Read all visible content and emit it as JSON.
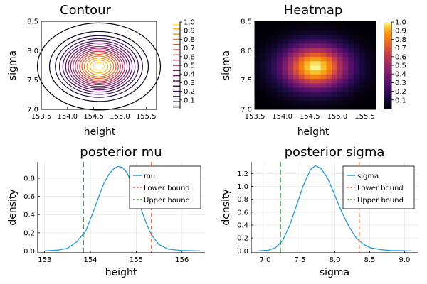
{
  "chart_data": [
    {
      "type": "contour",
      "title": "Contour",
      "xlabel": "height",
      "ylabel": "sigma",
      "xlim": [
        153.5,
        155.7
      ],
      "ylim": [
        7.0,
        8.5
      ],
      "xticks": [
        153.5,
        154.0,
        154.5,
        155.0,
        155.5
      ],
      "xticklabels": [
        "153.5",
        "154.0",
        "154.5",
        "155.0",
        "155.5"
      ],
      "yticks": [
        7.0,
        7.5,
        8.0,
        8.5
      ],
      "yticklabels": [
        "7.0",
        "7.5",
        "8.0",
        "8.5"
      ],
      "peak": {
        "x": 154.6,
        "y": 7.73
      },
      "spread": {
        "x": 0.42,
        "y": 0.265
      },
      "levels": [
        0.02,
        0.08,
        0.14,
        0.2,
        0.26,
        0.32,
        0.38,
        0.44,
        0.5,
        0.56,
        0.62,
        0.68,
        0.74,
        0.8,
        0.86,
        0.92,
        0.97
      ],
      "colorbar": {
        "ticks": [
          0.1,
          0.2,
          0.3,
          0.4,
          0.5,
          0.6,
          0.7,
          0.8,
          0.9,
          1.0
        ],
        "labels": [
          "0.1",
          "0.2",
          "0.3",
          "0.4",
          "0.5",
          "0.6",
          "0.7",
          "0.8",
          "0.9",
          "1.0"
        ]
      },
      "colormap": "inferno"
    },
    {
      "type": "heatmap",
      "title": "Heatmap",
      "xlabel": "height",
      "ylabel": "sigma",
      "xlim": [
        153.5,
        155.7
      ],
      "ylim": [
        7.0,
        8.5
      ],
      "xticks": [
        153.5,
        154.0,
        154.5,
        155.0,
        155.5
      ],
      "xticklabels": [
        "153.5",
        "154.0",
        "154.5",
        "155.0",
        "155.5"
      ],
      "yticks": [
        7.0,
        7.5,
        8.0,
        8.5
      ],
      "yticklabels": [
        "7.0",
        "7.5",
        "8.0",
        "8.5"
      ],
      "grid_cells": {
        "nx": 22,
        "ny": 20
      },
      "peak": {
        "x": 154.6,
        "y": 7.73
      },
      "spread": {
        "x": 0.42,
        "y": 0.265
      },
      "colorbar": {
        "ticks": [
          0.1,
          0.2,
          0.3,
          0.4,
          0.5,
          0.6,
          0.7,
          0.8,
          0.9,
          1.0
        ],
        "labels": [
          "0.1",
          "0.2",
          "0.3",
          "0.4",
          "0.5",
          "0.6",
          "0.7",
          "0.8",
          "0.9",
          "1.0"
        ]
      },
      "colormap": "inferno"
    },
    {
      "type": "line",
      "title": "posterior mu",
      "xlabel": "height",
      "ylabel": "density",
      "xlim": [
        152.85,
        156.5
      ],
      "ylim": [
        -0.02,
        0.98
      ],
      "xticks": [
        153,
        154,
        155,
        156
      ],
      "xticklabels": [
        "153",
        "154",
        "155",
        "156"
      ],
      "yticks": [
        0.0,
        0.2,
        0.4,
        0.6,
        0.8
      ],
      "yticklabels": [
        "0.0",
        "0.2",
        "0.4",
        "0.6",
        "0.8"
      ],
      "grid": true,
      "legend_position": "top-right",
      "series": [
        {
          "name": "mu",
          "color": "#1f9bde",
          "x": [
            153.0,
            153.3,
            153.5,
            153.7,
            153.9,
            154.0,
            154.1,
            154.2,
            154.3,
            154.4,
            154.5,
            154.6,
            154.7,
            154.8,
            154.9,
            155.0,
            155.1,
            155.2,
            155.3,
            155.4,
            155.5,
            155.7,
            156.0,
            156.4
          ],
          "y": [
            0.0,
            0.01,
            0.03,
            0.1,
            0.22,
            0.35,
            0.48,
            0.62,
            0.75,
            0.84,
            0.9,
            0.93,
            0.92,
            0.86,
            0.75,
            0.62,
            0.47,
            0.33,
            0.21,
            0.13,
            0.07,
            0.02,
            0.005,
            0.0
          ]
        }
      ],
      "vlines": [
        {
          "name": "Lower bound",
          "x": 155.33,
          "color": "#e26f46",
          "dash": "5,4"
        },
        {
          "name": "Upper bound",
          "x": 153.85,
          "color": "#3da44d",
          "dash": "7,4"
        }
      ]
    },
    {
      "type": "line",
      "title": "posterior sigma",
      "xlabel": "sigma",
      "ylabel": "density",
      "xlim": [
        6.8,
        9.2
      ],
      "ylim": [
        -0.03,
        1.38
      ],
      "xticks": [
        7.0,
        7.5,
        8.0,
        8.5,
        9.0
      ],
      "xticklabels": [
        "7.0",
        "7.5",
        "8.0",
        "8.5",
        "9.0"
      ],
      "yticks": [
        0.0,
        0.2,
        0.4,
        0.6,
        0.8,
        1.0,
        1.2
      ],
      "yticklabels": [
        "0.0",
        "0.2",
        "0.4",
        "0.6",
        "0.8",
        "1.0",
        "1.2"
      ],
      "grid": true,
      "legend_position": "top-right",
      "series": [
        {
          "name": "sigma",
          "color": "#1f9bde",
          "x": [
            6.9,
            7.05,
            7.15,
            7.25,
            7.35,
            7.45,
            7.55,
            7.65,
            7.72,
            7.8,
            7.9,
            8.0,
            8.1,
            8.2,
            8.3,
            8.4,
            8.5,
            8.65,
            8.8,
            9.1
          ],
          "y": [
            0.0,
            0.01,
            0.05,
            0.16,
            0.39,
            0.7,
            1.02,
            1.26,
            1.32,
            1.28,
            1.12,
            0.86,
            0.6,
            0.38,
            0.21,
            0.11,
            0.05,
            0.02,
            0.005,
            0.0
          ]
        }
      ],
      "vlines": [
        {
          "name": "Lower bound",
          "x": 8.35,
          "color": "#e26f46",
          "dash": "5,4"
        },
        {
          "name": "Upper bound",
          "x": 7.22,
          "color": "#3da44d",
          "dash": "7,4"
        }
      ]
    }
  ]
}
